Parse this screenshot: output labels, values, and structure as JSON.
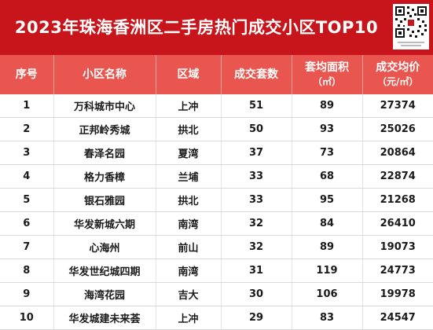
{
  "title": "2023年珠海香洲区二手房热门成交小区TOP10",
  "headers": {
    "rank": "序号",
    "name": "小区名称",
    "district": "区域",
    "count": "成交套数",
    "area": "套均面积",
    "area_unit": "（㎡）",
    "price": "成交均价",
    "price_unit": "（元/㎡）"
  },
  "rows": [
    {
      "rank": "1",
      "name": "万科城市中心",
      "district": "上冲",
      "count": "51",
      "area": "89",
      "price": "27374"
    },
    {
      "rank": "2",
      "name": "正邦岭秀城",
      "district": "拱北",
      "count": "50",
      "area": "93",
      "price": "25026"
    },
    {
      "rank": "3",
      "name": "春泽名园",
      "district": "夏湾",
      "count": "37",
      "area": "73",
      "price": "20864"
    },
    {
      "rank": "4",
      "name": "格力香樟",
      "district": "兰埔",
      "count": "33",
      "area": "68",
      "price": "22874"
    },
    {
      "rank": "5",
      "name": "银石雅园",
      "district": "拱北",
      "count": "33",
      "area": "95",
      "price": "21268"
    },
    {
      "rank": "6",
      "name": "华发新城六期",
      "district": "南湾",
      "count": "32",
      "area": "84",
      "price": "26410"
    },
    {
      "rank": "7",
      "name": "心海州",
      "district": "前山",
      "count": "32",
      "area": "89",
      "price": "19073"
    },
    {
      "rank": "8",
      "name": "华发世纪城四期",
      "district": "南湾",
      "count": "31",
      "area": "119",
      "price": "24773"
    },
    {
      "rank": "9",
      "name": "海湾花园",
      "district": "吉大",
      "count": "30",
      "area": "106",
      "price": "19978"
    },
    {
      "rank": "10",
      "name": "华发城建未来荟",
      "district": "上冲",
      "count": "29",
      "area": "83",
      "price": "24547"
    }
  ],
  "colors": {
    "title_bg": "#c8151b",
    "header_bg": "#e8564f",
    "text": "#1a1a1a"
  },
  "icons": {
    "qr": "qr-code-icon"
  }
}
